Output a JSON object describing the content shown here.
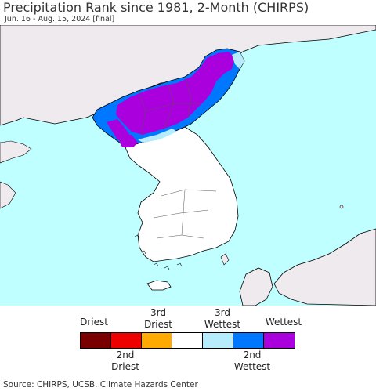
{
  "header": {
    "title": "Precipitation Rank since 1981, 2-Month (CHIRPS)",
    "subtitle": "Jun. 16 - Aug. 15, 2024 [final]"
  },
  "legend": {
    "top_labels": [
      "Driest",
      "3rd\nDriest",
      "3rd\nWettest",
      "Wettest"
    ],
    "bottom_labels": [
      "2nd\nDriest",
      "2nd\nWettest"
    ],
    "swatches": [
      {
        "name": "driest",
        "color": "#7a0000"
      },
      {
        "name": "2nd-driest",
        "color": "#ee0000"
      },
      {
        "name": "3rd-driest",
        "color": "#ffaa00"
      },
      {
        "name": "normal",
        "color": "#ffffff"
      },
      {
        "name": "3rd-wettest",
        "color": "#b6ecfb"
      },
      {
        "name": "2nd-wettest",
        "color": "#0077ff"
      },
      {
        "name": "wettest",
        "color": "#aa00dd"
      }
    ]
  },
  "map_colors": {
    "ocean": "#bfffff",
    "land": "#eeeaee",
    "korea_land": "#ffffff",
    "boundary": "#000000"
  },
  "footer": {
    "source": "Source: CHIRPS, UCSB, Climate Hazards Center"
  }
}
